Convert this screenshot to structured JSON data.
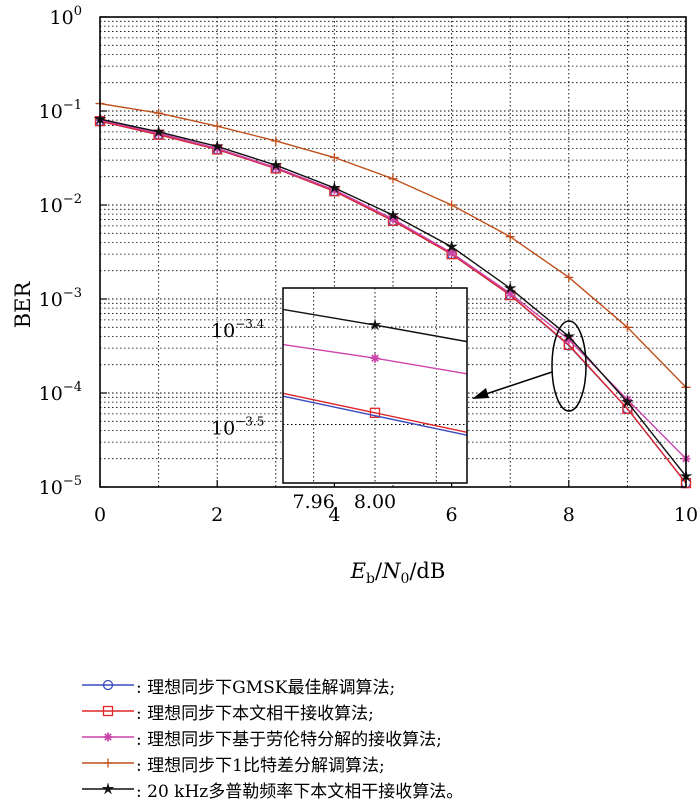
{
  "chart_data": {
    "type": "line",
    "title": "",
    "xlabel": {
      "E": "E",
      "b": "b",
      "slash1": "/",
      "N": "N",
      "zero": "0",
      "rest": "/dB"
    },
    "ylabel": "BER",
    "x": [
      0,
      1,
      2,
      3,
      4,
      5,
      6,
      7,
      8,
      9,
      10
    ],
    "xlim": [
      0,
      10
    ],
    "ylim_log10": [
      -5,
      0
    ],
    "yscale": "log",
    "grid": true,
    "x_ticks": [
      "0",
      "2",
      "4",
      "6",
      "8",
      "10"
    ],
    "y_ticks": [
      {
        "base": "10",
        "exp": "0"
      },
      {
        "base": "10",
        "exp": "−1"
      },
      {
        "base": "10",
        "exp": "−2"
      },
      {
        "base": "10",
        "exp": "−3"
      },
      {
        "base": "10",
        "exp": "−4"
      },
      {
        "base": "10",
        "exp": "−5"
      }
    ],
    "series": [
      {
        "key": "gmsk",
        "name": ": 理想同步下GMSK最佳解调算法;",
        "color": "#3b4cc0",
        "marker": "circle",
        "values": [
          0.078,
          0.056,
          0.039,
          0.0245,
          0.014,
          0.0068,
          0.003,
          0.0011,
          0.00032,
          6.8e-05,
          1.1e-05
        ]
      },
      {
        "key": "coherent",
        "name": ": 理想同步下本文相干接收算法;",
        "color": "#e0262b",
        "marker": "square",
        "values": [
          0.078,
          0.056,
          0.039,
          0.0245,
          0.014,
          0.0068,
          0.003,
          0.0011,
          0.000325,
          6.8e-05,
          1.1e-05
        ]
      },
      {
        "key": "laurent",
        "name": ": 理想同步下基于劳伦特分解的接收算法;",
        "color": "#cc44aa",
        "marker": "star",
        "values": [
          0.08,
          0.058,
          0.04,
          0.025,
          0.0145,
          0.0071,
          0.0031,
          0.00115,
          0.00037,
          8.5e-05,
          2e-05
        ]
      },
      {
        "key": "onebit",
        "name": ": 理想同步下1比特差分解调算法;",
        "color": "#c0501c",
        "marker": "plus",
        "values": [
          0.12,
          0.095,
          0.069,
          0.048,
          0.032,
          0.019,
          0.01,
          0.0046,
          0.0017,
          0.0005,
          0.000115
        ]
      },
      {
        "key": "doppler",
        "name": ": 20 kHz多普勒频率下本文相干接收算法。",
        "color": "#111111",
        "marker": "asterisk",
        "values": [
          0.082,
          0.06,
          0.042,
          0.0265,
          0.0152,
          0.0078,
          0.0036,
          0.0013,
          0.0004,
          8e-05,
          1.3e-05
        ]
      }
    ],
    "inset": {
      "x_ticks": [
        "7.96",
        "8.00"
      ],
      "y_ticks": [
        {
          "base": "10",
          "exp": "−3.4"
        },
        {
          "base": "10",
          "exp": "−3.5"
        }
      ],
      "xlim": [
        7.94,
        8.06
      ],
      "ylim_log10": [
        -3.56,
        -3.36
      ],
      "series": [
        {
          "key": "doppler",
          "x": [
            7.94,
            8.0,
            8.06
          ],
          "log10": [
            -3.382,
            -3.398,
            -3.415
          ],
          "marker_at": 8.0
        },
        {
          "key": "laurent",
          "x": [
            7.94,
            8.0,
            8.06
          ],
          "log10": [
            -3.418,
            -3.432,
            -3.448
          ],
          "marker_at": 8.0
        },
        {
          "key": "coherent",
          "x": [
            7.94,
            8.0,
            8.06
          ],
          "log10": [
            -3.468,
            -3.488,
            -3.508
          ],
          "marker_at": 8.0
        },
        {
          "key": "gmsk",
          "x": [
            7.94,
            8.0,
            8.06
          ],
          "log10": [
            -3.471,
            -3.491,
            -3.511
          ],
          "marker_at": 8.0
        }
      ]
    }
  }
}
